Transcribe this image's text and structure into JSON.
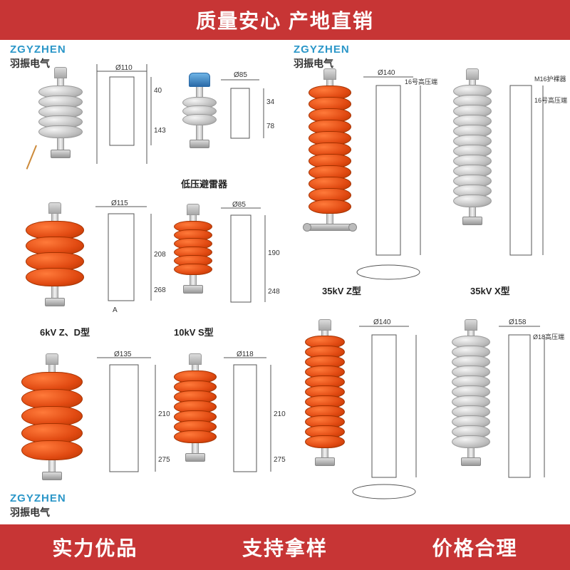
{
  "banners": {
    "top": "质量安心  产地直销",
    "bottom_left": "实力优品",
    "bottom_mid": "支持拿样",
    "bottom_right": "价格合理",
    "banner_bg": "#c73535",
    "banner_fg": "#ffffff"
  },
  "watermark": {
    "brand": "ZGYZHEN",
    "company": "羽振电气",
    "brand_color": "#2a96c8"
  },
  "captions": {
    "low_v": "低压避雷器",
    "kv6": "6kV  Z、D型",
    "kv10": "10kV  S型",
    "kv35z": "35kV  Z型",
    "kv35x": "35kV  X型"
  },
  "colors": {
    "grey_shed": "#b8b8b8",
    "red_shed": "#e14a12",
    "metal": "#bcbcbc",
    "blue_cap": "#2a6aa8",
    "line": "#555555",
    "bg": "#ffffff"
  },
  "dim_labels": {
    "phi110": "Ø110",
    "phi85": "Ø85",
    "phi115": "Ø115",
    "phi85b": "Ø85",
    "phi135": "Ø135",
    "phi118": "Ø118",
    "phi140": "Ø140",
    "phi140b": "Ø140",
    "phi158": "Ø158",
    "a": "A",
    "n16": "16号高压端",
    "n18": "Ø18高压端",
    "m16": "M16护裸器",
    "h40": "40",
    "h34": "34",
    "h78": "78",
    "h143": "143",
    "h190": "190",
    "h248": "248",
    "h208": "208",
    "h268": "268",
    "h210": "210",
    "h275": "275"
  },
  "products": [
    {
      "id": "p1",
      "sheds": 5,
      "color": "grey",
      "shed_w": 62,
      "shed_h": 18,
      "stem_h": 10
    },
    {
      "id": "p2",
      "sheds": 3,
      "color": "grey",
      "shed_w": 48,
      "shed_h": 16,
      "stem_h": 14,
      "cap": "blue"
    },
    {
      "id": "p3",
      "sheds": 4,
      "color": "red",
      "shed_w": 82,
      "shed_h": 26,
      "stem_h": 10
    },
    {
      "id": "p4",
      "sheds": 6,
      "color": "red",
      "shed_w": 54,
      "shed_h": 16,
      "stem_h": 8
    },
    {
      "id": "p5",
      "sheds": 5,
      "color": "red",
      "shed_w": 86,
      "shed_h": 28,
      "stem_h": 10
    },
    {
      "id": "p6",
      "sheds": 7,
      "color": "red",
      "shed_w": 60,
      "shed_h": 18,
      "stem_h": 8
    },
    {
      "id": "p7",
      "sheds": 11,
      "color": "red",
      "shed_w": 60,
      "shed_h": 20,
      "stem_h": 8,
      "flange": true
    },
    {
      "id": "p8",
      "sheds": 12,
      "color": "grey",
      "shed_w": 54,
      "shed_h": 18,
      "stem_h": 7
    },
    {
      "id": "p9",
      "sheds": 11,
      "color": "red",
      "shed_w": 56,
      "shed_h": 18,
      "stem_h": 7
    },
    {
      "id": "p10",
      "sheds": 11,
      "color": "grey",
      "shed_w": 54,
      "shed_h": 18,
      "stem_h": 7
    }
  ]
}
